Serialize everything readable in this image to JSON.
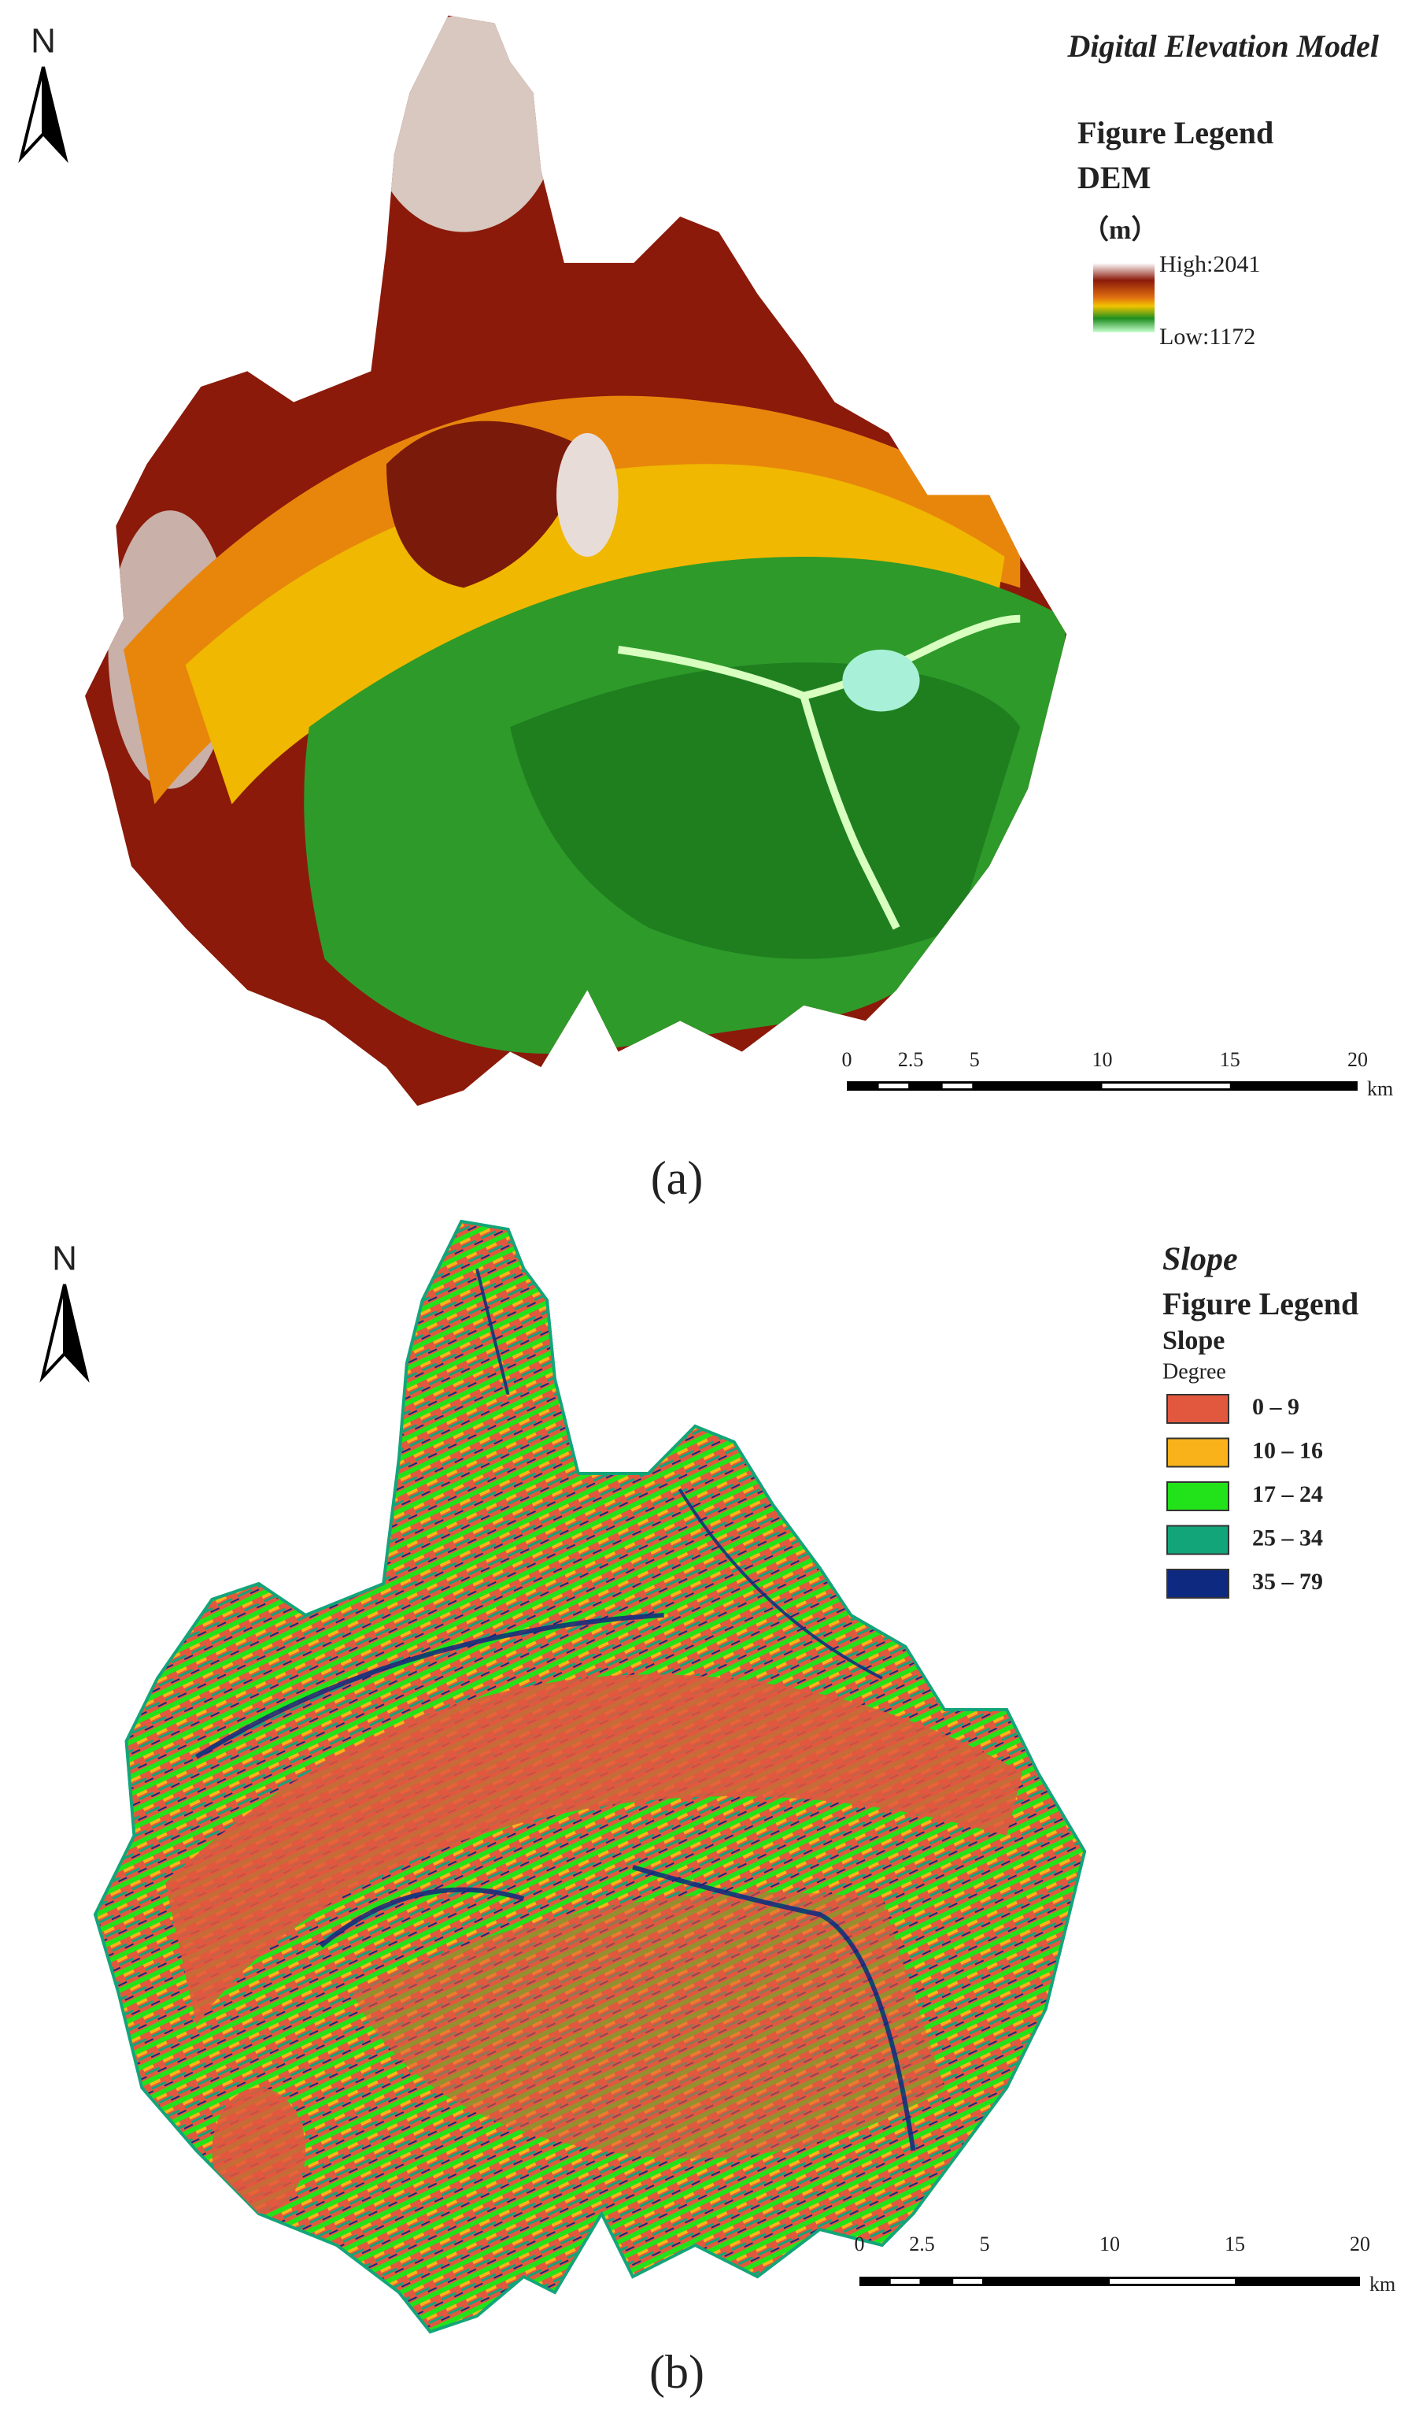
{
  "panels": [
    {
      "caption": "(a)",
      "title": "Digital Elevation Model",
      "north": "N",
      "legend": {
        "title": "Figure Legend",
        "subtitle": "DEM",
        "unit": "（m）",
        "high": "High:2041",
        "low": "Low:1172"
      },
      "scalebar": {
        "ticks": [
          0,
          2.5,
          5,
          10,
          15,
          20
        ],
        "unit": "km"
      }
    },
    {
      "caption": "(b)",
      "title": "Slope",
      "north": "N",
      "legend": {
        "title": "Figure Legend",
        "subtitle": "Slope",
        "unit": "Degree",
        "classes": [
          {
            "label": "0 – 9",
            "color": "#e2583e"
          },
          {
            "label": "10 – 16",
            "color": "#f9b21a"
          },
          {
            "label": "17 – 24",
            "color": "#22e21a"
          },
          {
            "label": "25 – 34",
            "color": "#13a57a"
          },
          {
            "label": "35 – 79",
            "color": "#0d2a80"
          }
        ]
      },
      "scalebar": {
        "ticks": [
          0,
          2.5,
          5,
          10,
          15,
          20
        ],
        "unit": "km"
      }
    }
  ]
}
